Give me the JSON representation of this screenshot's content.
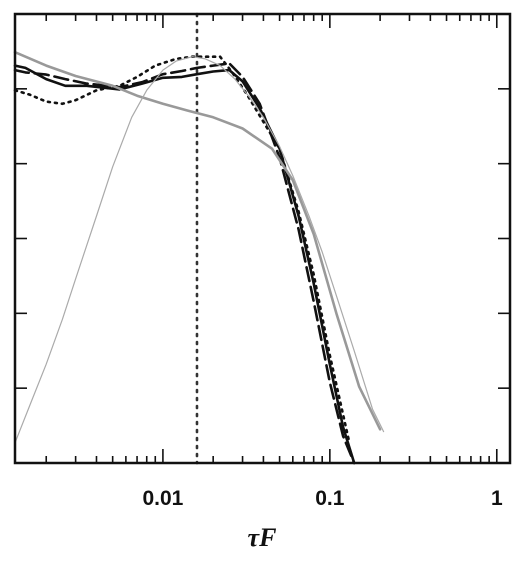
{
  "chart_data": {
    "type": "line",
    "xscale": "log",
    "xlim": [
      0.0013,
      1.2
    ],
    "ylim": [
      0,
      1
    ],
    "xlabel": "τF",
    "xticks": [
      {
        "value": 0.01,
        "label": "0.01"
      },
      {
        "value": 0.1,
        "label": "0.1"
      },
      {
        "value": 1,
        "label": "1"
      }
    ],
    "grid": false,
    "legend": "none",
    "vline": {
      "x": 0.016,
      "style": "dotted",
      "color": "#333333"
    },
    "series": [
      {
        "style": "solid",
        "color": "#111111",
        "width": 2.6,
        "x": [
          0.0013,
          0.0015,
          0.002,
          0.0026,
          0.0035,
          0.0055,
          0.0075,
          0.01,
          0.013,
          0.016,
          0.02,
          0.025,
          0.03,
          0.038,
          0.05,
          0.065,
          0.08,
          0.1,
          0.12,
          0.14
        ],
        "y": [
          0.885,
          0.88,
          0.855,
          0.84,
          0.84,
          0.832,
          0.845,
          0.858,
          0.86,
          0.866,
          0.872,
          0.875,
          0.85,
          0.79,
          0.7,
          0.55,
          0.4,
          0.22,
          0.08,
          0.0
        ]
      },
      {
        "style": "dashed",
        "color": "#111111",
        "width": 2.6,
        "x": [
          0.0013,
          0.0015,
          0.002,
          0.0026,
          0.0035,
          0.0055,
          0.0075,
          0.01,
          0.013,
          0.016,
          0.02,
          0.025,
          0.03,
          0.038,
          0.05,
          0.065,
          0.08,
          0.1,
          0.12,
          0.14
        ],
        "y": [
          0.875,
          0.87,
          0.865,
          0.855,
          0.845,
          0.837,
          0.848,
          0.866,
          0.873,
          0.88,
          0.885,
          0.89,
          0.86,
          0.8,
          0.68,
          0.52,
          0.36,
          0.18,
          0.06,
          0.0
        ]
      },
      {
        "style": "dotted",
        "color": "#111111",
        "width": 2.6,
        "x": [
          0.0013,
          0.0016,
          0.002,
          0.0025,
          0.003,
          0.004,
          0.0055,
          0.007,
          0.009,
          0.012,
          0.015,
          0.018,
          0.022,
          0.026,
          0.032,
          0.04,
          0.05,
          0.065,
          0.08,
          0.1,
          0.13
        ],
        "y": [
          0.83,
          0.82,
          0.805,
          0.8,
          0.808,
          0.83,
          0.84,
          0.86,
          0.885,
          0.9,
          0.905,
          0.905,
          0.905,
          0.87,
          0.82,
          0.76,
          0.7,
          0.56,
          0.42,
          0.24,
          0.05
        ]
      },
      {
        "style": "solid",
        "color": "#999999",
        "width": 2.6,
        "x": [
          0.0013,
          0.002,
          0.003,
          0.005,
          0.007,
          0.01,
          0.014,
          0.02,
          0.03,
          0.045,
          0.06,
          0.08,
          0.11,
          0.15,
          0.2
        ],
        "y": [
          0.915,
          0.885,
          0.862,
          0.84,
          0.818,
          0.8,
          0.785,
          0.77,
          0.745,
          0.7,
          0.63,
          0.51,
          0.33,
          0.17,
          0.075
        ]
      },
      {
        "style": "solid",
        "color": "#aaaaaa",
        "width": 1.2,
        "x": [
          0.0013,
          0.0016,
          0.002,
          0.0025,
          0.003,
          0.004,
          0.005,
          0.0065,
          0.008,
          0.01,
          0.012,
          0.015,
          0.018,
          0.022,
          0.027,
          0.033,
          0.04,
          0.05,
          0.06,
          0.075,
          0.09,
          0.11,
          0.14,
          0.18,
          0.21
        ],
        "y": [
          0.045,
          0.13,
          0.22,
          0.32,
          0.41,
          0.55,
          0.66,
          0.77,
          0.83,
          0.875,
          0.895,
          0.905,
          0.9,
          0.885,
          0.855,
          0.815,
          0.77,
          0.705,
          0.64,
          0.55,
          0.47,
          0.37,
          0.25,
          0.12,
          0.07
        ]
      }
    ]
  }
}
